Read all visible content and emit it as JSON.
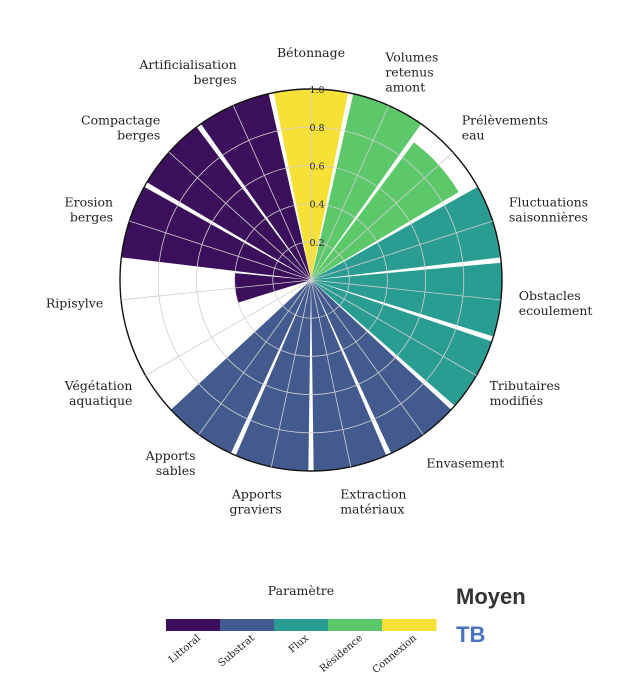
{
  "chart_data": {
    "type": "polar-bar",
    "categories": [
      "Bétonnage",
      "Volumes\nretenus\namont",
      "Prélèvements\neau",
      "Fluctuations\nsaisonnières",
      "Obstacles\necoulement",
      "Tributaires\nmodifiés",
      "Envasement",
      "Extraction\nmatériaux",
      "Apports\ngraviers",
      "Apports\nsables",
      "Végétation\naquatique",
      "Ripisylve",
      "Erosion\nberges",
      "Compactage\nberges",
      "Artificialisation\nberges"
    ],
    "values": [
      1.0,
      1.0,
      0.9,
      1.0,
      1.0,
      1.0,
      1.0,
      1.0,
      1.0,
      1.0,
      0.0,
      0.4,
      1.0,
      1.0,
      1.0
    ],
    "groups": [
      "Connexion",
      "Résidence",
      "Résidence",
      "Flux",
      "Flux",
      "Flux",
      "Substrat",
      "Substrat",
      "Substrat",
      "Substrat",
      "Littoral",
      "Littoral",
      "Littoral",
      "Littoral",
      "Littoral"
    ],
    "rlim": [
      0,
      1.0
    ],
    "rticks": [
      "0.2",
      "0.4",
      "0.6",
      "0.8",
      "1.0"
    ],
    "grid": true,
    "legend": {
      "title": "Paramètre",
      "entries": [
        {
          "name": "Littoral",
          "color": "#3b0f5c"
        },
        {
          "name": "Substrat",
          "color": "#435a8f"
        },
        {
          "name": "Flux",
          "color": "#2a9d92"
        },
        {
          "name": "Résidence",
          "color": "#5cc86a"
        },
        {
          "name": "Connexion",
          "color": "#f7e137"
        }
      ],
      "placement": "bottom"
    }
  },
  "annotations": {
    "level": {
      "text": "Moyen",
      "color": "#333333"
    },
    "status": {
      "text": "TB",
      "color": "#4a73c2"
    }
  }
}
